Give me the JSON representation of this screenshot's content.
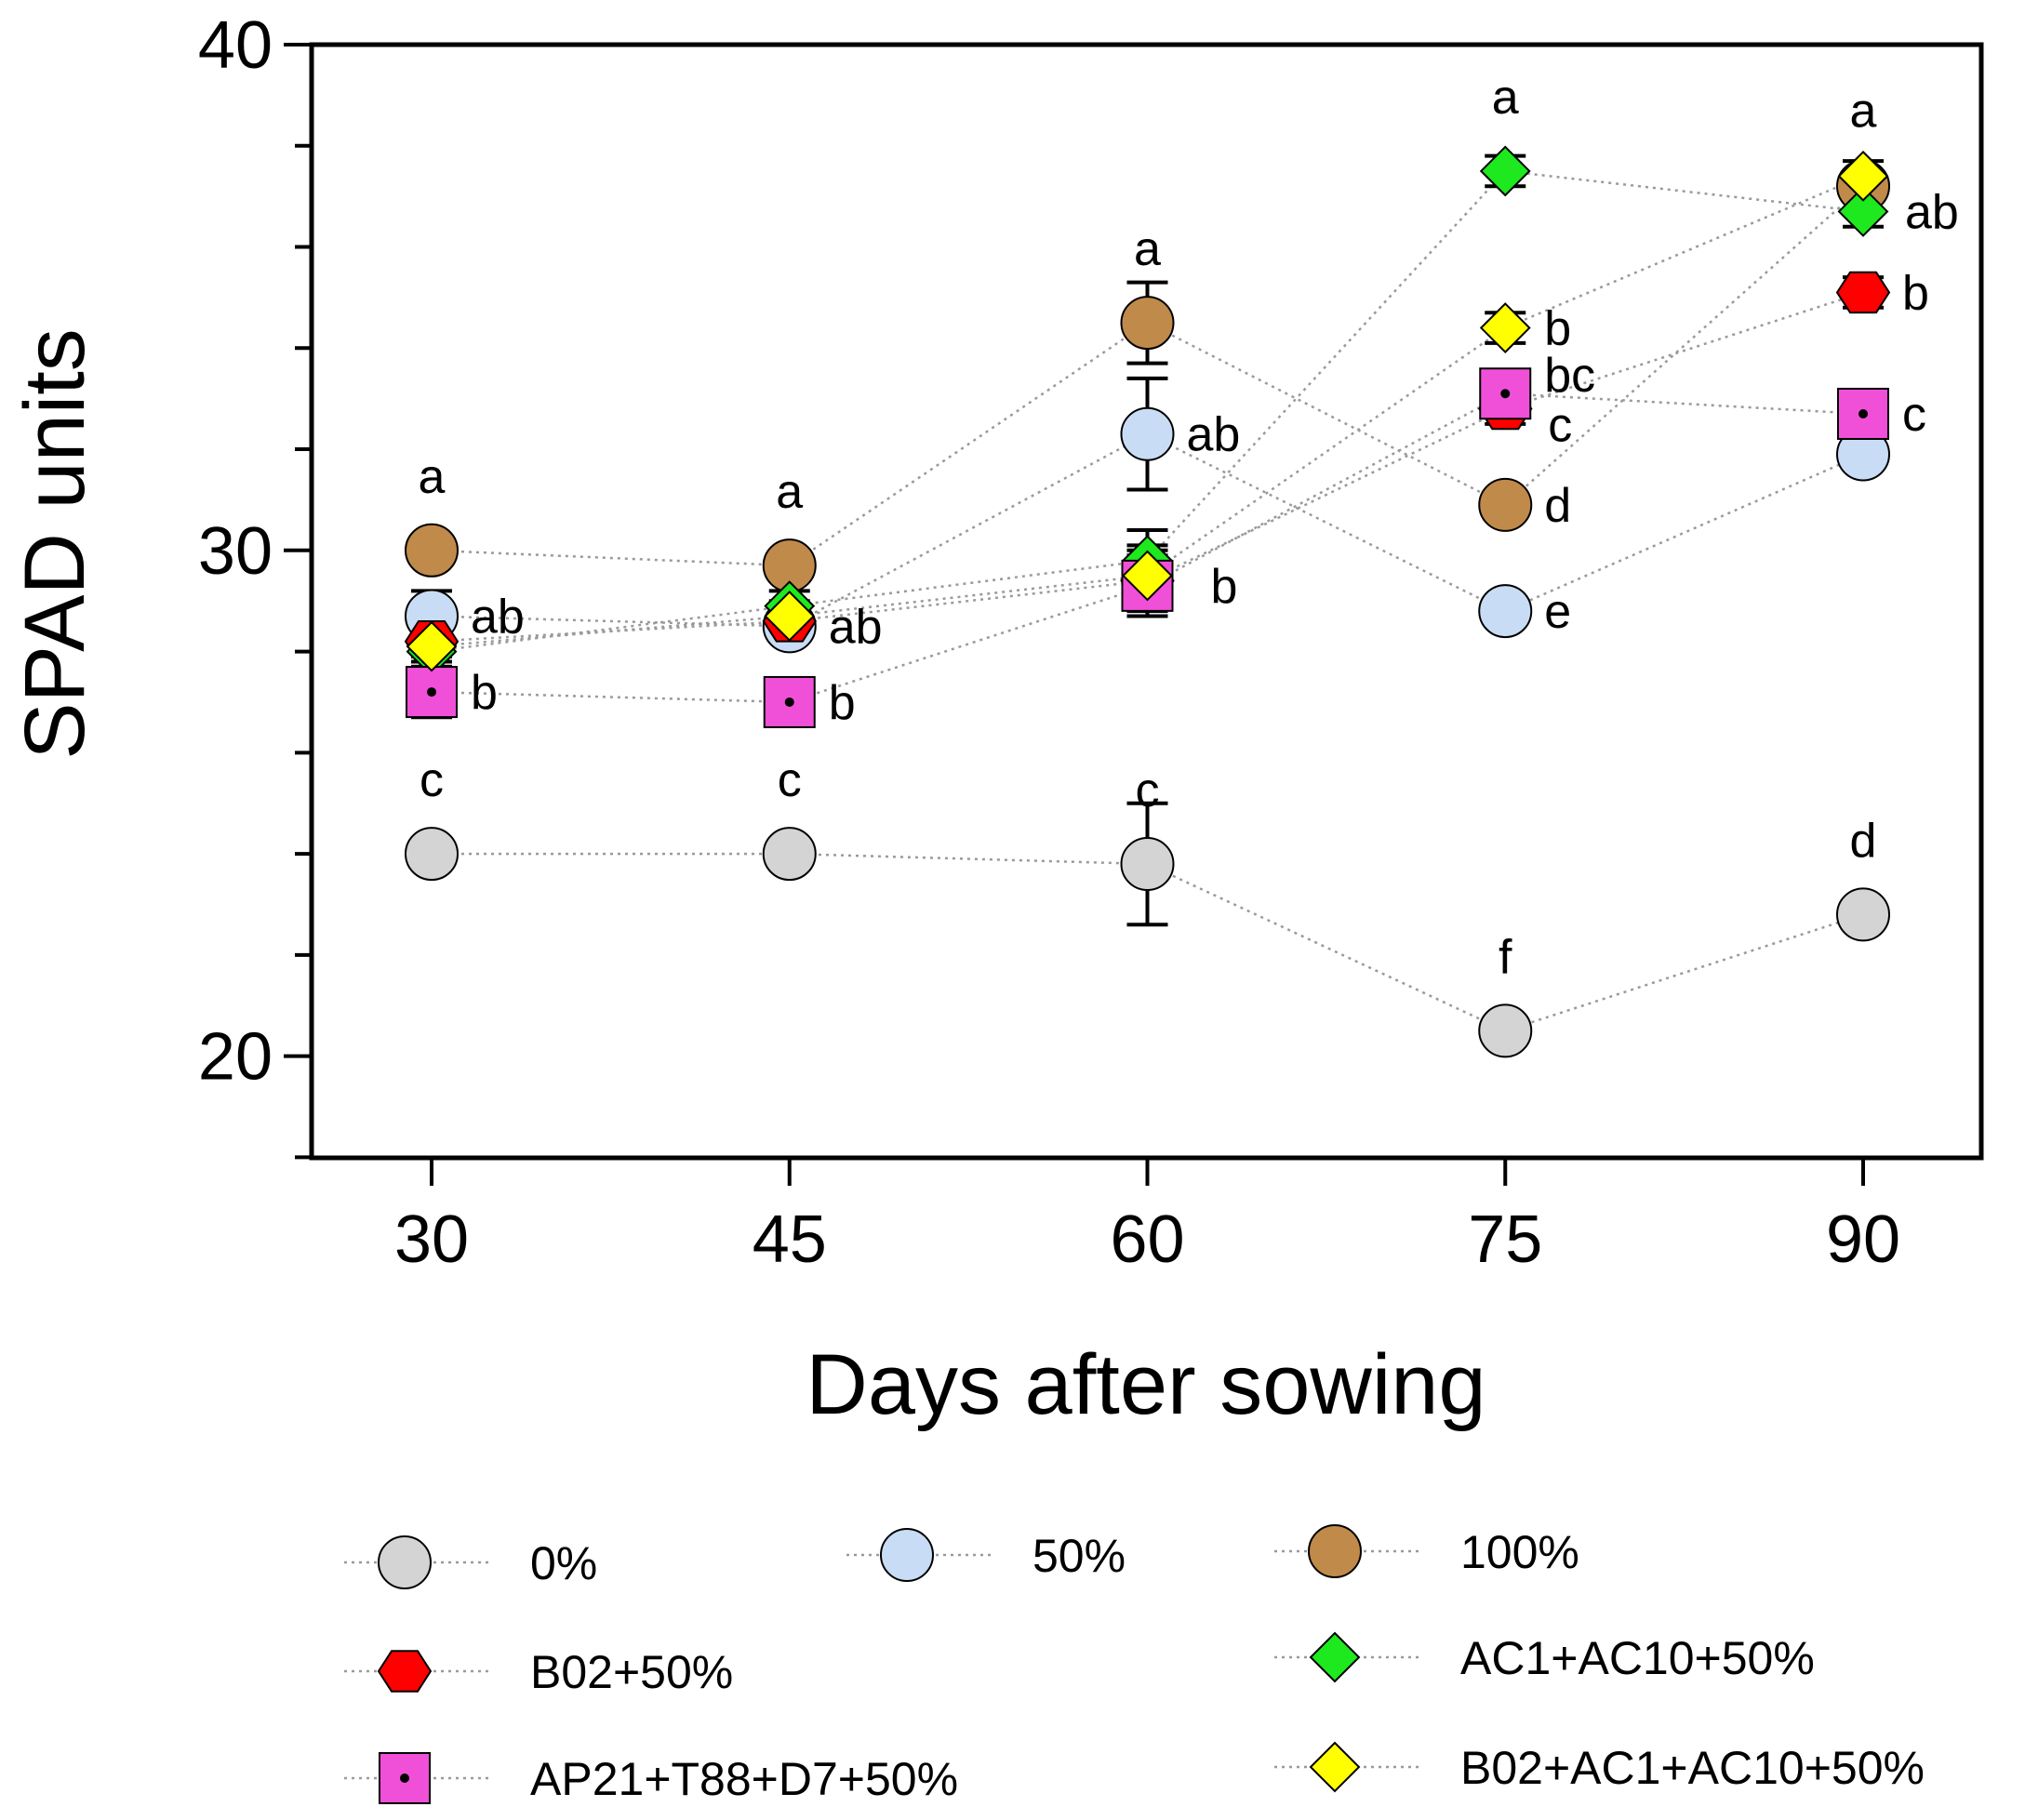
{
  "chart_data": {
    "type": "scatter",
    "xlabel": "Days after sowing",
    "ylabel": "SPAD units",
    "x": [
      30,
      45,
      60,
      75,
      90
    ],
    "xlim": [
      25,
      95
    ],
    "ylim": [
      18,
      40
    ],
    "y_ticks": [
      "20",
      "30",
      "40"
    ],
    "x_ticks": [
      "30",
      "45",
      "60",
      "75",
      "90"
    ],
    "grid": false,
    "legend_position": "bottom",
    "series": [
      {
        "key": "s0",
        "name": "0%",
        "marker": "circle",
        "color": "#d4d4d4",
        "values": [
          24.0,
          24.0,
          23.8,
          20.5,
          22.8
        ],
        "errors": [
          0.3,
          0.3,
          1.2,
          0.3,
          0.3
        ],
        "labels": [
          "c",
          "c",
          "c",
          "f",
          "d"
        ]
      },
      {
        "key": "s50",
        "name": "50%",
        "marker": "circle",
        "color": "#c9dcf5",
        "values": [
          28.7,
          28.5,
          32.3,
          28.8,
          31.9
        ],
        "errors": [
          0.5,
          0.3,
          1.1,
          0.3,
          0.3
        ],
        "labels": [
          "ab",
          "ab",
          "ab",
          "e",
          ""
        ]
      },
      {
        "key": "s100",
        "name": "100%",
        "marker": "circle",
        "color": "#c08a4a",
        "values": [
          30.0,
          29.7,
          34.5,
          30.9,
          37.2
        ],
        "errors": [
          0.3,
          0.3,
          0.8,
          0.3,
          0.3
        ],
        "labels": [
          "a",
          "a",
          "a",
          "d",
          "a"
        ]
      },
      {
        "key": "b02",
        "name": "B02+50%",
        "marker": "hexagon",
        "color": "#ff0000",
        "values": [
          28.2,
          28.6,
          29.4,
          32.8,
          35.1
        ],
        "errors": [
          0.3,
          0.3,
          0.6,
          0.3,
          0.3
        ],
        "labels": [
          "",
          "",
          "",
          "c",
          "b"
        ]
      },
      {
        "key": "ac",
        "name": "AC1+AC10+50%",
        "marker": "diamond",
        "color": "#1ee81e",
        "values": [
          28.0,
          28.9,
          29.8,
          37.5,
          36.7
        ],
        "errors": [
          0.3,
          0.3,
          0.6,
          0.3,
          0.3
        ],
        "labels": [
          "",
          "",
          "",
          "a",
          "ab"
        ]
      },
      {
        "key": "ap",
        "name": "AP21+T88+D7+50%",
        "marker": "square-dot",
        "color": "#f050d8",
        "values": [
          27.2,
          27.0,
          29.3,
          33.1,
          32.7
        ],
        "errors": [
          0.5,
          0.3,
          0.6,
          0.3,
          0.3
        ],
        "labels": [
          "b",
          "b",
          "b",
          "bc",
          "c"
        ]
      },
      {
        "key": "bac",
        "name": "B02+AC1+AC10+50%",
        "marker": "diamond",
        "color": "#ffff00",
        "values": [
          28.1,
          28.7,
          29.5,
          34.4,
          37.4
        ],
        "errors": [
          0.3,
          0.3,
          0.6,
          0.3,
          0.3
        ],
        "labels": [
          "",
          "",
          "",
          "b",
          ""
        ]
      }
    ]
  }
}
